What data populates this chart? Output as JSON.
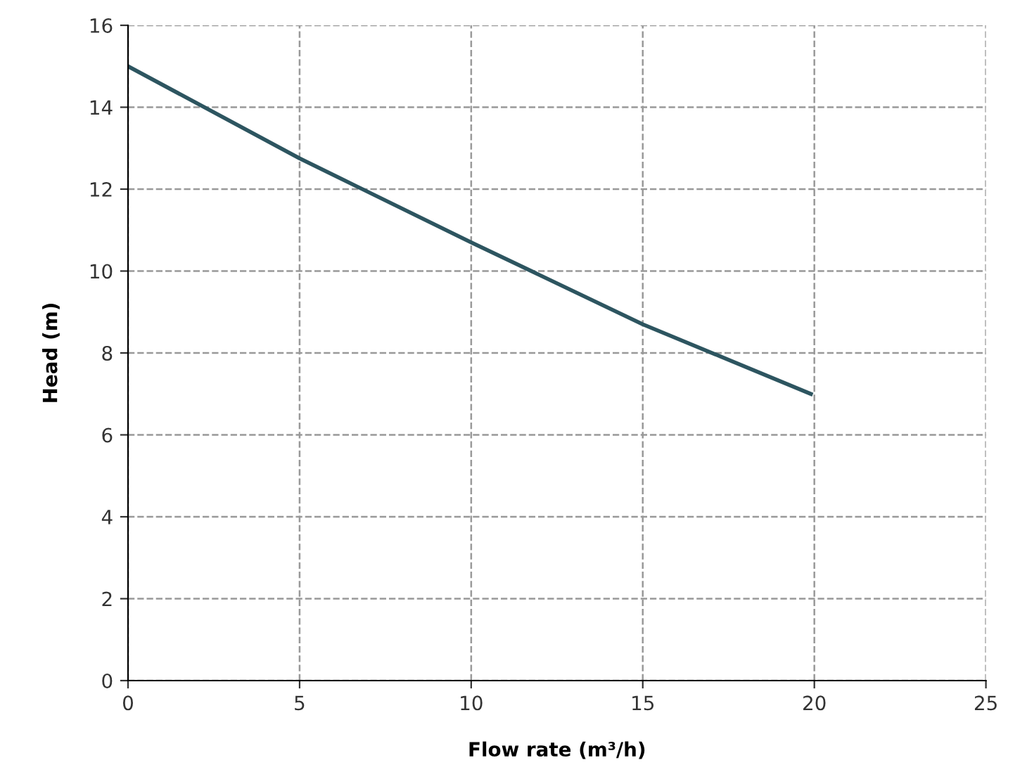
{
  "chart_data": {
    "type": "line",
    "xlabel": "Flow rate (m³/h)",
    "ylabel": "Head (m)",
    "series": [
      {
        "color": "#2d5560",
        "x": [
          0,
          5,
          10,
          15,
          19.9
        ],
        "values": [
          15,
          12.75,
          10.7,
          8.7,
          7
        ]
      }
    ],
    "xlim": [
      0,
      25
    ],
    "xticks": [
      0,
      5,
      10,
      15,
      20,
      25
    ],
    "ylim": [
      0,
      16
    ],
    "yticks": [
      0,
      2,
      4,
      6,
      8,
      10,
      12,
      14,
      16
    ],
    "grid": true,
    "marker": "none",
    "line_style": "solid"
  }
}
